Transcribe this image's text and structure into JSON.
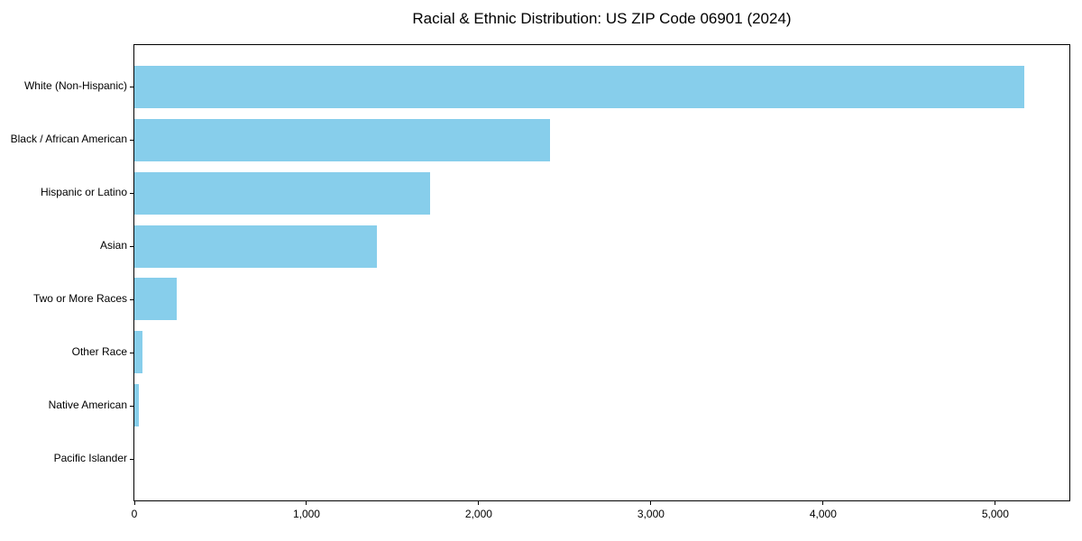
{
  "chart_data": {
    "type": "bar",
    "orientation": "horizontal",
    "title": "Racial & Ethnic Distribution: US ZIP Code 06901 (2024)",
    "categories": [
      "White (Non-Hispanic)",
      "Black / African American",
      "Hispanic or Latino",
      "Asian",
      "Two or More Races",
      "Other Race",
      "Native American",
      "Pacific Islander"
    ],
    "values": [
      5170,
      2415,
      1720,
      1410,
      245,
      47,
      25,
      0
    ],
    "xlabel": "",
    "ylabel": "",
    "xlim": [
      0,
      5430
    ],
    "xticks": [
      0,
      1000,
      2000,
      3000,
      4000,
      5000
    ],
    "xtick_labels": [
      "0",
      "1,000",
      "2,000",
      "3,000",
      "4,000",
      "5,000"
    ],
    "bar_color": "#87CEEB",
    "frame_color": "#000000",
    "background_color": "#ffffff",
    "grid": false,
    "legend": null
  }
}
